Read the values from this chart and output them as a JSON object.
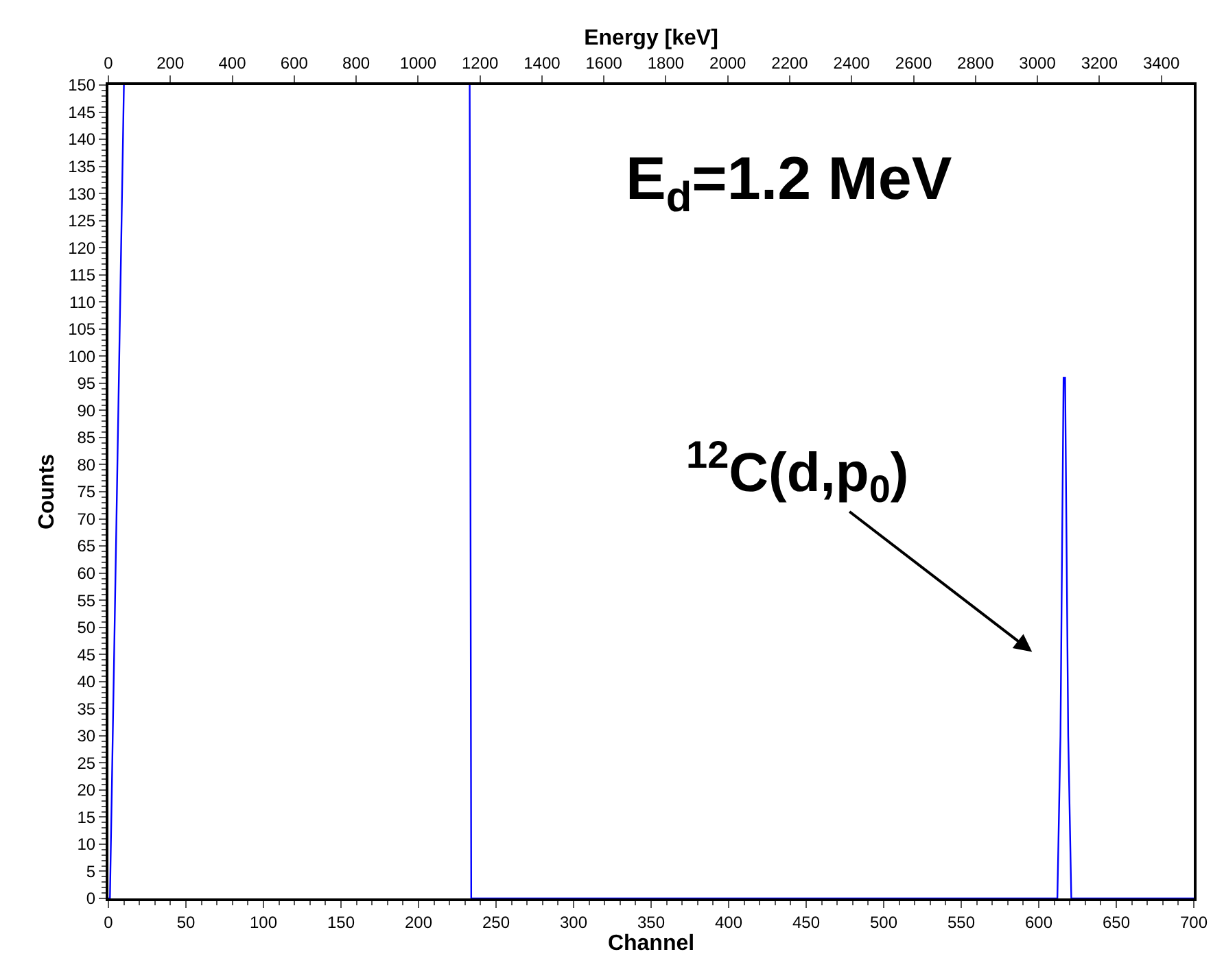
{
  "chart_data": {
    "type": "line",
    "xlabel": "Channel",
    "ylabel": "Counts",
    "x2label": "Energy [keV]",
    "series": [
      {
        "color": "#0000ff",
        "x": [
          0,
          1,
          10,
          100,
          233,
          234,
          612,
          614,
          616,
          617,
          619,
          621,
          700
        ],
        "values": [
          0,
          0,
          150,
          null,
          150,
          0,
          0,
          30,
          96,
          96,
          30,
          0,
          0
        ]
      }
    ],
    "xlim": [
      0,
      700
    ],
    "ylim": [
      0,
      150
    ],
    "x2lim": [
      0,
      3505
    ],
    "xticks": [
      0,
      50,
      100,
      150,
      200,
      250,
      300,
      350,
      400,
      450,
      500,
      550,
      600,
      650,
      700
    ],
    "yticks": [
      0,
      5,
      10,
      15,
      20,
      25,
      30,
      35,
      40,
      45,
      50,
      55,
      60,
      65,
      70,
      75,
      80,
      85,
      90,
      95,
      100,
      105,
      110,
      115,
      120,
      125,
      130,
      135,
      140,
      145,
      150
    ],
    "x2ticks": [
      0,
      200,
      400,
      600,
      800,
      1000,
      1200,
      1400,
      1600,
      1800,
      2000,
      2200,
      2400,
      2600,
      2800,
      3000,
      3200,
      3400
    ],
    "annotations": [
      "E$_{d}$=1.2 MeV",
      "$^{12}$C(d,p$_{0}$)"
    ],
    "marker": "none",
    "line_style": "solid"
  }
}
